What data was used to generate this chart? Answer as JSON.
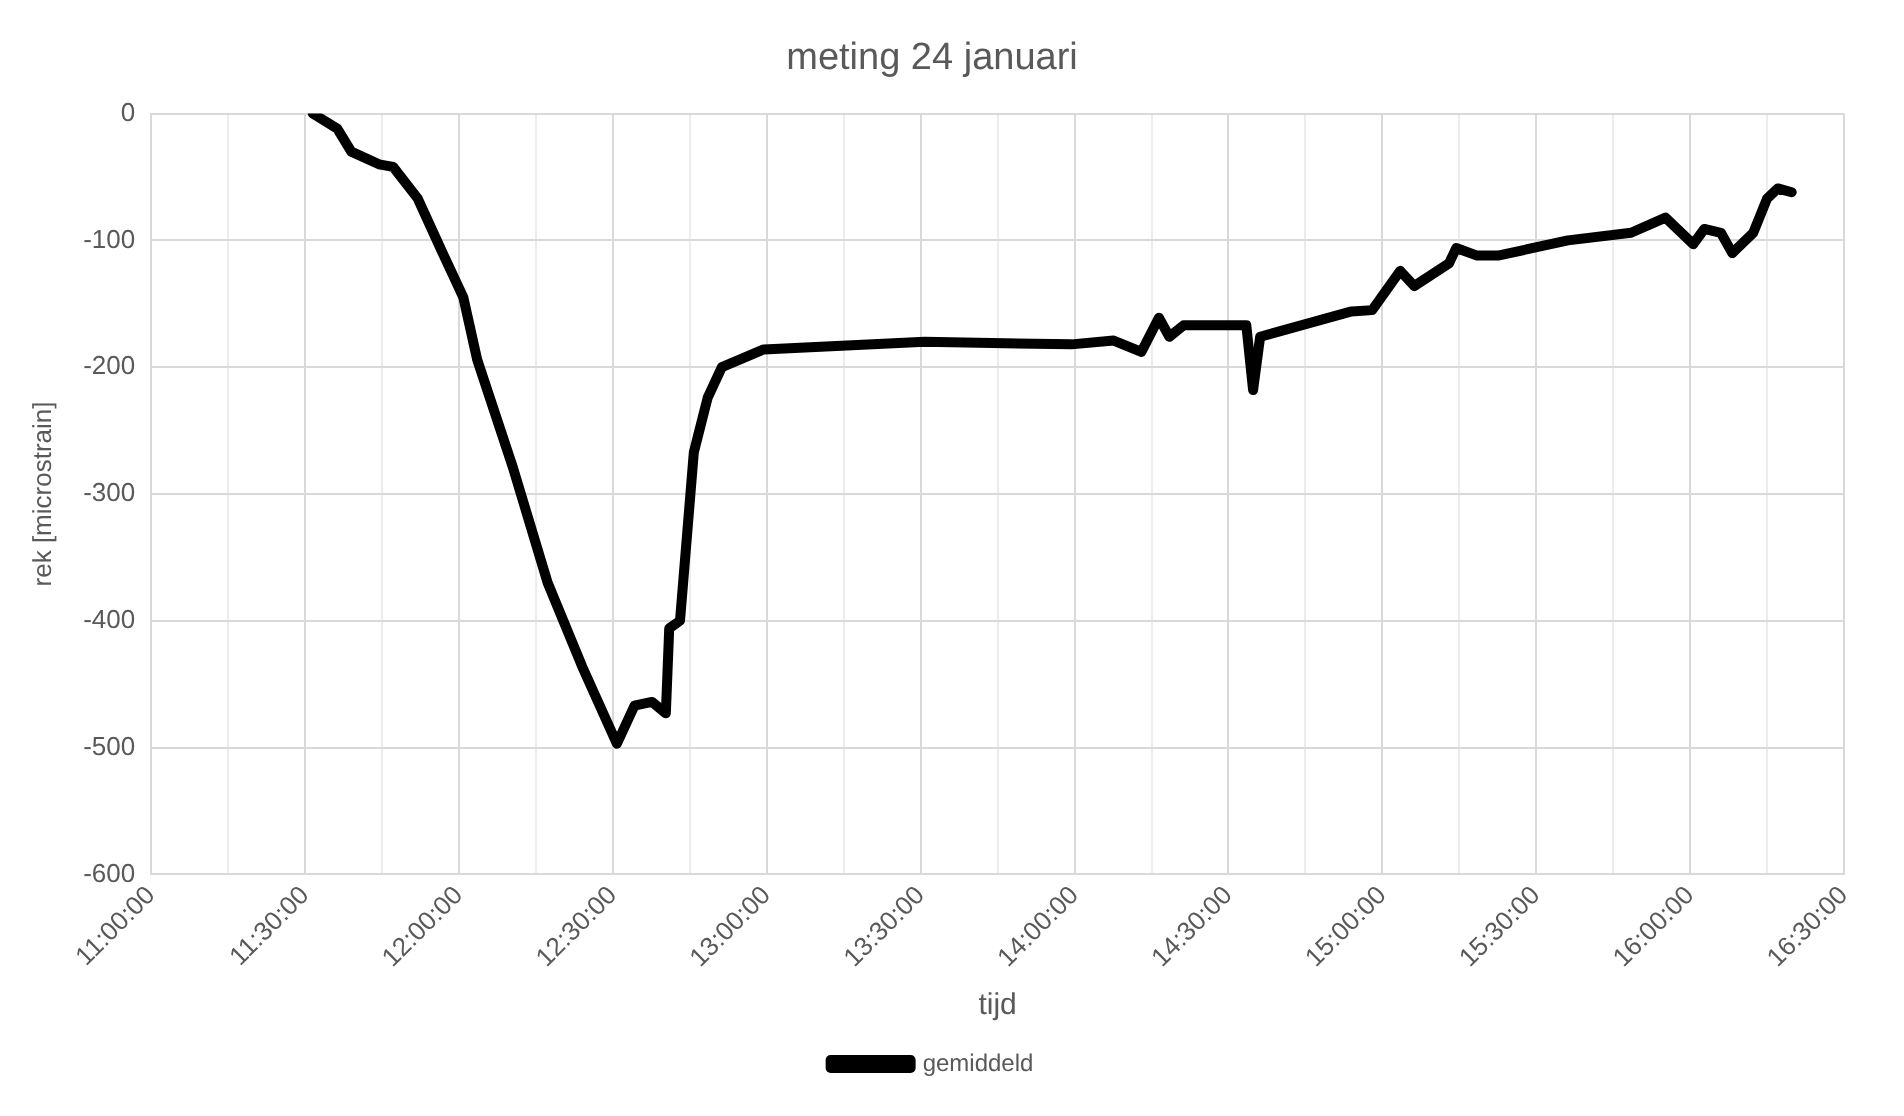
{
  "chart_data": {
    "type": "line",
    "title": "meting 24 januari",
    "xlabel": "tijd",
    "ylabel": "rek [microstrain]",
    "xlim": [
      11,
      16.5
    ],
    "xticks": [
      {
        "value": 11,
        "label": "11:00:00"
      },
      {
        "value": 11.25,
        "label": null
      },
      {
        "value": 11.5,
        "label": "11:30:00"
      },
      {
        "value": 11.75,
        "label": null
      },
      {
        "value": 12,
        "label": "12:00:00"
      },
      {
        "value": 12.25,
        "label": null
      },
      {
        "value": 12.5,
        "label": "12:30:00"
      },
      {
        "value": 12.75,
        "label": null
      },
      {
        "value": 13,
        "label": "13:00:00"
      },
      {
        "value": 13.25,
        "label": null
      },
      {
        "value": 13.5,
        "label": "13:30:00"
      },
      {
        "value": 13.75,
        "label": null
      },
      {
        "value": 14,
        "label": "14:00:00"
      },
      {
        "value": 14.25,
        "label": null
      },
      {
        "value": 14.5,
        "label": "14:30:00"
      },
      {
        "value": 14.75,
        "label": null
      },
      {
        "value": 15,
        "label": "15:00:00"
      },
      {
        "value": 15.25,
        "label": null
      },
      {
        "value": 15.5,
        "label": "15:30:00"
      },
      {
        "value": 15.75,
        "label": null
      },
      {
        "value": 16,
        "label": "16:00:00"
      },
      {
        "value": 16.25,
        "label": null
      },
      {
        "value": 16.5,
        "label": "16:30:00"
      }
    ],
    "ylim": [
      -600,
      0
    ],
    "yticks": [
      -600,
      -500,
      -400,
      -300,
      -200,
      -100,
      0
    ],
    "grid": true,
    "legend": "bottom",
    "marker": "none",
    "line_style": "solid",
    "series": [
      {
        "name": "gemiddeld",
        "color": "#000000",
        "x": [
          11.525,
          11.605,
          11.65,
          11.74,
          11.786,
          11.866,
          11.945,
          12.014,
          12.059,
          12.175,
          12.288,
          12.4,
          12.513,
          12.57,
          12.627,
          12.672,
          12.683,
          12.718,
          12.763,
          12.808,
          12.854,
          12.99,
          13.513,
          13.99,
          14.127,
          14.217,
          14.274,
          14.308,
          14.354,
          14.558,
          14.58,
          14.603,
          14.9,
          14.967,
          15.058,
          15.104,
          15.217,
          15.24,
          15.308,
          15.376,
          15.603,
          15.808,
          15.92,
          16.01,
          16.046,
          16.1,
          16.137,
          16.205,
          16.25,
          16.285,
          16.33
        ],
        "values": [
          0,
          -12,
          -30,
          -40,
          -42,
          -67,
          -109,
          -145,
          -194,
          -279,
          -370,
          -436,
          -497,
          -467,
          -464,
          -473,
          -406,
          -400,
          -267,
          -224,
          -200,
          -186,
          -180,
          -182,
          -179,
          -188,
          -161,
          -176,
          -167,
          -167,
          -218,
          -176,
          -156,
          -155,
          -124,
          -136,
          -118,
          -106,
          -112,
          -112,
          -100,
          -94,
          -82,
          -103,
          -91,
          -94,
          -110,
          -94,
          -67,
          -59,
          -62
        ]
      }
    ]
  }
}
